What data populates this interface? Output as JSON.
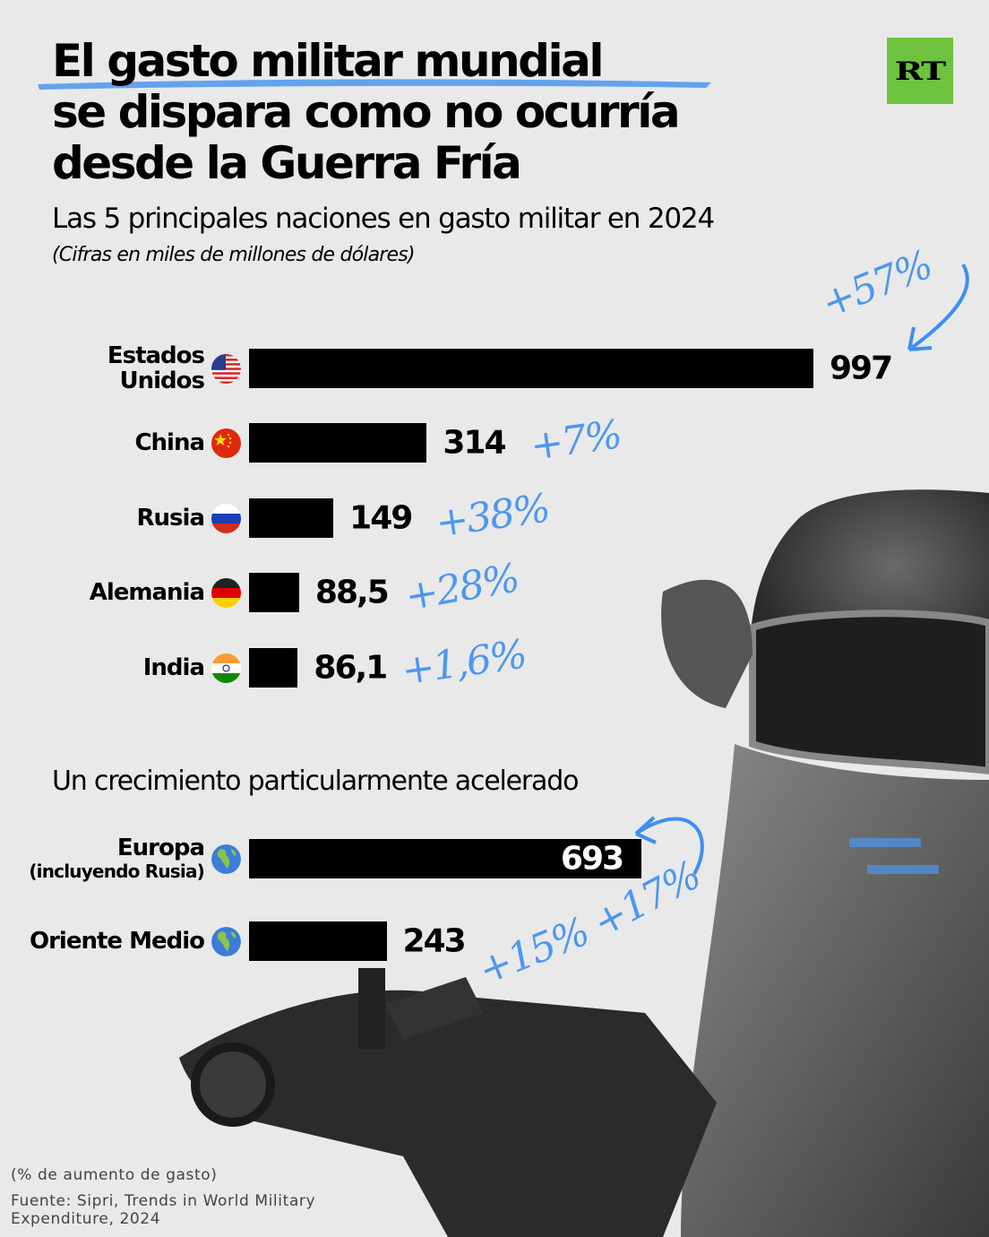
{
  "header": {
    "title_lines": [
      "El gasto militar mundial",
      "se dispara como no ocurría",
      "desde la Guerra Fría"
    ],
    "logo_text": "RT",
    "subtitle": "Las 5 principales naciones en gasto militar en 2024",
    "note": "(Cifras en miles de millones de dólares)",
    "section2_title": "Un crecimiento particularmente acelerado"
  },
  "footer": {
    "legend_note": "(% de aumento de gasto)",
    "source_line1": "Fuente: Sipri, Trends in World Military",
    "source_line2": "Expenditure, 2024"
  },
  "colors": {
    "background": "#e9e9e9",
    "bar": "#000000",
    "annotation": "#3d8ff0",
    "logo": "#6dc23e"
  },
  "chart_data": [
    {
      "type": "bar",
      "orientation": "horizontal",
      "title": "Las 5 principales naciones en gasto militar en 2024",
      "subtitle": "(Cifras en miles de millones de dólares)",
      "xlabel": "",
      "ylabel": "",
      "grid": false,
      "categories": [
        "Estados Unidos",
        "China",
        "Rusia",
        "Alemania",
        "India"
      ],
      "category_lines": [
        [
          "Estados",
          "Unidos"
        ],
        [
          "China"
        ],
        [
          "Rusia"
        ],
        [
          "Alemania"
        ],
        [
          "India"
        ]
      ],
      "flags": [
        "us-flag-icon",
        "china-flag-icon",
        "russia-flag-icon",
        "germany-flag-icon",
        "india-flag-icon"
      ],
      "values": [
        997,
        314,
        149,
        88.5,
        86.1
      ],
      "value_labels": [
        "997",
        "314",
        "149",
        "88,5",
        "86,1"
      ],
      "growth_labels": [
        "+57%",
        "+7%",
        "+38%",
        "+28%",
        "+1,6%"
      ],
      "growth_values": [
        57,
        7,
        38,
        28,
        1.6
      ],
      "xlim": [
        0,
        997
      ]
    },
    {
      "type": "bar",
      "orientation": "horizontal",
      "title": "Un crecimiento particularmente acelerado",
      "grid": false,
      "categories": [
        "Europa (incluyendo Rusia)",
        "Oriente Medio"
      ],
      "category_lines": [
        [
          "Europa",
          "(incluyendo Rusia)"
        ],
        [
          "Oriente Medio"
        ]
      ],
      "flags": [
        "globe-icon",
        "globe-icon"
      ],
      "values": [
        693,
        243
      ],
      "value_labels": [
        "693",
        "243"
      ],
      "growth_labels": [
        "+17%",
        "+15%"
      ],
      "growth_values": [
        17,
        15
      ],
      "xlim": [
        0,
        997
      ]
    }
  ]
}
